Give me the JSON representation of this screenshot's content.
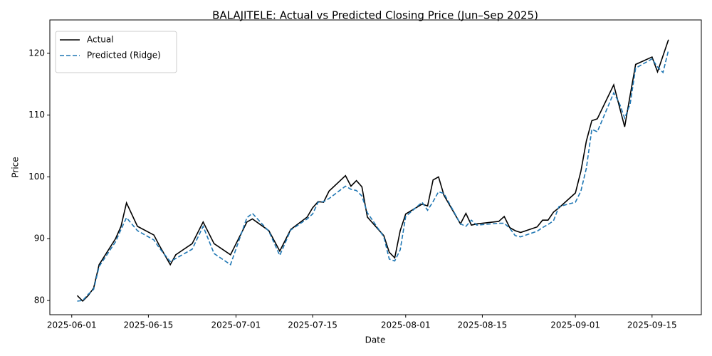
{
  "chart_data": {
    "type": "line",
    "title": "BALAJITELE: Actual vs Predicted Closing Price (Jun–Sep 2025)",
    "x_label": "Date",
    "y_label": "Price",
    "x": [
      "2025-06-02",
      "2025-06-03",
      "2025-06-04",
      "2025-06-05",
      "2025-06-06",
      "2025-06-09",
      "2025-06-10",
      "2025-06-11",
      "2025-06-13",
      "2025-06-16",
      "2025-06-17",
      "2025-06-19",
      "2025-06-20",
      "2025-06-23",
      "2025-06-25",
      "2025-06-27",
      "2025-06-30",
      "2025-07-03",
      "2025-07-04",
      "2025-07-07",
      "2025-07-09",
      "2025-07-11",
      "2025-07-14",
      "2025-07-15",
      "2025-07-16",
      "2025-07-17",
      "2025-07-18",
      "2025-07-21",
      "2025-07-22",
      "2025-07-23",
      "2025-07-24",
      "2025-07-25",
      "2025-07-28",
      "2025-07-29",
      "2025-07-30",
      "2025-07-31",
      "2025-08-01",
      "2025-08-04",
      "2025-08-05",
      "2025-08-06",
      "2025-08-07",
      "2025-08-08",
      "2025-08-11",
      "2025-08-12",
      "2025-08-13",
      "2025-08-14",
      "2025-08-18",
      "2025-08-19",
      "2025-08-20",
      "2025-08-21",
      "2025-08-22",
      "2025-08-25",
      "2025-08-26",
      "2025-08-27",
      "2025-08-28",
      "2025-08-29",
      "2025-09-01",
      "2025-09-02",
      "2025-09-03",
      "2025-09-04",
      "2025-09-05",
      "2025-09-08",
      "2025-09-09",
      "2025-09-10",
      "2025-09-11",
      "2025-09-12",
      "2025-09-15",
      "2025-09-16",
      "2025-09-17",
      "2025-09-18"
    ],
    "series": [
      {
        "name": "Actual",
        "color": "#000000",
        "linestyle": "solid",
        "values": [
          80.8,
          79.9,
          80.8,
          82.0,
          85.8,
          90.0,
          92.0,
          95.8,
          92.0,
          90.6,
          88.9,
          85.8,
          87.4,
          89.2,
          92.7,
          89.2,
          87.4,
          92.7,
          93.2,
          91.3,
          88.0,
          91.5,
          93.5,
          95.0,
          96.0,
          95.9,
          97.7,
          100.2,
          98.5,
          99.4,
          98.4,
          93.5,
          90.5,
          87.8,
          86.9,
          91.3,
          94.0,
          95.6,
          95.3,
          99.5,
          100.0,
          97.0,
          92.4,
          94.1,
          92.2,
          92.4,
          92.8,
          93.6,
          91.8,
          91.3,
          91.0,
          91.9,
          93.0,
          93.0,
          94.3,
          95.0,
          97.4,
          100.9,
          105.8,
          109.1,
          109.4,
          114.9,
          111.5,
          108.1,
          113.2,
          118.2,
          119.4,
          117.0,
          119.6,
          122.2
        ]
      },
      {
        "name": "Predicted (Ridge)",
        "color": "#1f77b4",
        "linestyle": "dashed",
        "values": [
          79.9,
          80.0,
          81.0,
          81.8,
          85.5,
          89.5,
          91.5,
          93.4,
          91.3,
          89.8,
          88.5,
          86.3,
          86.8,
          88.3,
          92.0,
          87.6,
          85.8,
          93.4,
          94.1,
          91.2,
          87.3,
          91.4,
          93.2,
          94.0,
          95.9,
          96.0,
          96.5,
          98.5,
          98.0,
          97.8,
          96.9,
          94.2,
          90.3,
          86.7,
          86.4,
          88.2,
          93.6,
          95.9,
          94.6,
          96.0,
          97.6,
          97.3,
          92.4,
          92.0,
          93.0,
          92.2,
          92.5,
          92.5,
          91.7,
          90.5,
          90.3,
          91.2,
          91.8,
          92.3,
          92.9,
          95.2,
          95.9,
          97.7,
          101.4,
          107.7,
          107.3,
          113.6,
          112.0,
          109.5,
          111.8,
          117.6,
          119.1,
          117.8,
          116.9,
          120.5
        ]
      }
    ],
    "xlim": [
      "2025-05-28",
      "2025-09-24"
    ],
    "xticks": [
      "2025-06-01",
      "2025-06-15",
      "2025-07-01",
      "2025-07-15",
      "2025-08-01",
      "2025-08-15",
      "2025-09-01",
      "2025-09-15"
    ],
    "ylim": [
      77.7,
      125.4
    ],
    "yticks": [
      80,
      90,
      100,
      110,
      120
    ],
    "grid": false,
    "legend": "upper-left"
  }
}
